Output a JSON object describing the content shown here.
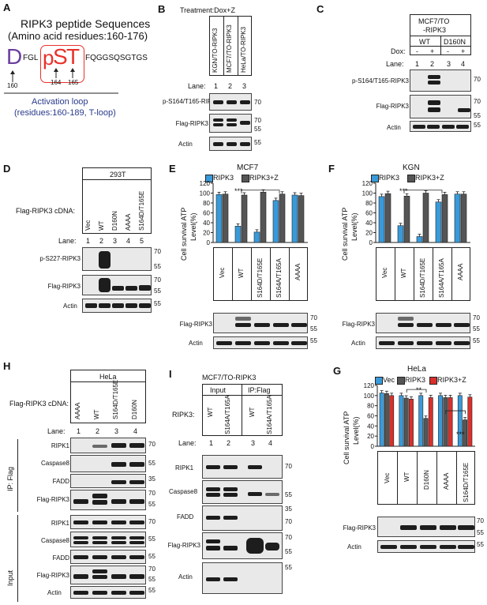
{
  "panels": {
    "A": {
      "label": "A",
      "title_line1": "RIPK3 peptide Sequences",
      "title_line2": "(Amino acid residues:160-176)",
      "res_D": "D",
      "seq_fgl": "FGL",
      "res_p1": "p",
      "res_S": "S",
      "res_p2": "p",
      "res_T": "T",
      "seq_rest": "FQGGSQSGTGS",
      "pos160": "160",
      "pos164": "164",
      "pos165": "165",
      "loop_line1": "Activation loop",
      "loop_line2": "(residues:160-189, T-loop)",
      "colors": {
        "D": "#6b3fa0",
        "pSpT": "#e8322b",
        "loop": "#2a3a8c"
      }
    },
    "B": {
      "label": "B",
      "treatment": "Treatment:Dox+Z",
      "columns": [
        "KGN/TO-RIPK3",
        "MCF7/TO-RIPK3",
        "HeLa/TO-RIPK3"
      ],
      "lane_label": "Lane:",
      "lanes": [
        "1",
        "2",
        "3"
      ],
      "rows": [
        "p-S164/T165-RIPK3",
        "Flag-RIPK3",
        "Actin"
      ],
      "mw": [
        "70",
        "70",
        "55",
        "55"
      ]
    },
    "C": {
      "label": "C",
      "header": "MCF7/TO\n-RIPK3",
      "header_l1": "MCF7/TO",
      "header_l2": "-RIPK3",
      "groups": [
        "WT",
        "D160N"
      ],
      "dox_label": "Dox:",
      "dox": [
        "-",
        "+",
        "-",
        "+"
      ],
      "lane_label": "Lane:",
      "lanes": [
        "1",
        "2",
        "3",
        "4"
      ],
      "rows": [
        "p-S164/T165-RIPK3",
        "Flag-RIPK3",
        "Actin"
      ],
      "mw": [
        "70",
        "70",
        "55",
        "55"
      ]
    },
    "D": {
      "label": "D",
      "header": "293T",
      "cdna_label": "Flag-RIPK3 cDNA:",
      "columns": [
        "Vec",
        "WT",
        "D160N",
        "AAAA",
        "S164D/T165E"
      ],
      "lane_label": "Lane:",
      "lanes": [
        "1",
        "2",
        "3",
        "4",
        "5"
      ],
      "rows": [
        "p-S227-RIPK3",
        "Flag-RIPK3",
        "Actin"
      ],
      "mw": [
        "70",
        "55",
        "70",
        "55",
        "55"
      ]
    },
    "E": {
      "label": "E",
      "cell": "MCF7",
      "legend": [
        "RIPK3",
        "RIPK3+Z"
      ],
      "ylabel_l1": "Cell survival ATP",
      "ylabel_l2": "Level(%)",
      "sig": "***",
      "columns": [
        "Vec",
        "WT",
        "S164D/T165E",
        "S164A/T165A",
        "AAAA"
      ],
      "rows": [
        "Flag-RIPK3",
        "Actin"
      ],
      "mw": [
        "70",
        "55",
        "55"
      ]
    },
    "F": {
      "label": "F",
      "cell": "KGN",
      "legend": [
        "RIPK3",
        "RIPK3+Z"
      ],
      "ylabel_l1": "Cell survival ATP",
      "ylabel_l2": "Level(%)",
      "sig": "***",
      "columns": [
        "Vec",
        "WT",
        "S164D/T165E",
        "S164A/T165A",
        "AAAA"
      ],
      "rows": [
        "Flag-RIPK3",
        "Actin"
      ],
      "mw": [
        "70",
        "55",
        "55"
      ]
    },
    "G": {
      "label": "G",
      "cell": "HeLa",
      "legend": [
        "Vec",
        "RIPK3",
        "RIPK3+Z"
      ],
      "ylabel_l1": "Cell survival ATP",
      "ylabel_l2": "Level(%)",
      "sig1": "**",
      "sig2": "***",
      "columns": [
        "Vec",
        "WT",
        "D160N",
        "AAAA",
        "S164D/T165E"
      ],
      "rows": [
        "Flag-RIPK3",
        "Actin"
      ],
      "mw": [
        "70",
        "55",
        "55"
      ]
    },
    "H": {
      "label": "H",
      "header": "HeLa",
      "cdna_label": "Flag-RIPK3 cDNA:",
      "columns": [
        "AAAA",
        "WT",
        "S164D/T165E",
        "D160N"
      ],
      "lane_label": "Lane:",
      "lanes": [
        "1",
        "2",
        "3",
        "4"
      ],
      "ip_label": "IP: Flag",
      "input_label": "Input",
      "ip_rows": [
        "RIPK1",
        "Caspase8",
        "FADD",
        "Flag-RIPK3"
      ],
      "input_rows": [
        "RIPK1",
        "Caspase8",
        "FADD",
        "Flag-RIPK3",
        "Actin"
      ],
      "mw_ip": [
        "70",
        "55",
        "35",
        "70",
        "55"
      ],
      "mw_input": [
        "70",
        "55",
        "55",
        "70",
        "55",
        "55"
      ]
    },
    "I": {
      "label": "I",
      "header": "MCF7/TO-RIPK3",
      "group_input": "Input",
      "group_ip": "IP:Flag",
      "ripk3_label": "RIPK3:",
      "columns": [
        "WT",
        "S164A/T165A",
        "WT",
        "S164A/T165A"
      ],
      "lane_label": "Lane:",
      "lanes": [
        "1",
        "2",
        "3",
        "4"
      ],
      "rows": [
        "RIPK1",
        "Caspase8",
        "FADD",
        "Flag-RIPK3",
        "Actin"
      ],
      "mw": [
        "70",
        "55",
        "35",
        "70",
        "70",
        "55",
        "55"
      ]
    }
  },
  "chart_data": [
    {
      "type": "bar",
      "panel": "E",
      "title": "MCF7",
      "categories": [
        "Vec",
        "WT",
        "S164D/T165E",
        "S164A/T165A",
        "AAAA"
      ],
      "series": [
        {
          "name": "RIPK3",
          "values": [
            97,
            33,
            21,
            85,
            96
          ],
          "color": "#3a9ad9"
        },
        {
          "name": "RIPK3+Z",
          "values": [
            98,
            96,
            102,
            98,
            95
          ],
          "color": "#555555"
        }
      ],
      "ylabel": "Cell survival ATP Level(%)",
      "ylim": [
        0,
        120
      ],
      "yticks": [
        0,
        20,
        40,
        60,
        80,
        100,
        120
      ]
    },
    {
      "type": "bar",
      "panel": "F",
      "title": "KGN",
      "categories": [
        "Vec",
        "WT",
        "S164D/T165E",
        "S164A/T165A",
        "AAAA"
      ],
      "series": [
        {
          "name": "RIPK3",
          "values": [
            93,
            34,
            12,
            82,
            98
          ],
          "color": "#3a9ad9"
        },
        {
          "name": "RIPK3+Z",
          "values": [
            99,
            94,
            100,
            97,
            98
          ],
          "color": "#555555"
        }
      ],
      "ylabel": "Cell survival ATP Level(%)",
      "ylim": [
        0,
        120
      ],
      "yticks": [
        0,
        20,
        40,
        60,
        80,
        100,
        120
      ]
    },
    {
      "type": "bar",
      "panel": "G",
      "title": "HeLa",
      "categories": [
        "Vec",
        "WT",
        "D160N",
        "AAAA",
        "S164D/T165E"
      ],
      "series": [
        {
          "name": "Vec",
          "values": [
            105,
            100,
            100,
            100,
            100
          ],
          "color": "#3a9ad9"
        },
        {
          "name": "RIPK3",
          "values": [
            104,
            95,
            55,
            96,
            52
          ],
          "color": "#555555"
        },
        {
          "name": "RIPK3+Z",
          "values": [
            100,
            93,
            96,
            96,
            97
          ],
          "color": "#d9302c"
        }
      ],
      "ylabel": "Cell survival ATP Level(%)",
      "ylim": [
        0,
        120
      ],
      "yticks": [
        0,
        20,
        40,
        60,
        80,
        100,
        120
      ]
    }
  ]
}
